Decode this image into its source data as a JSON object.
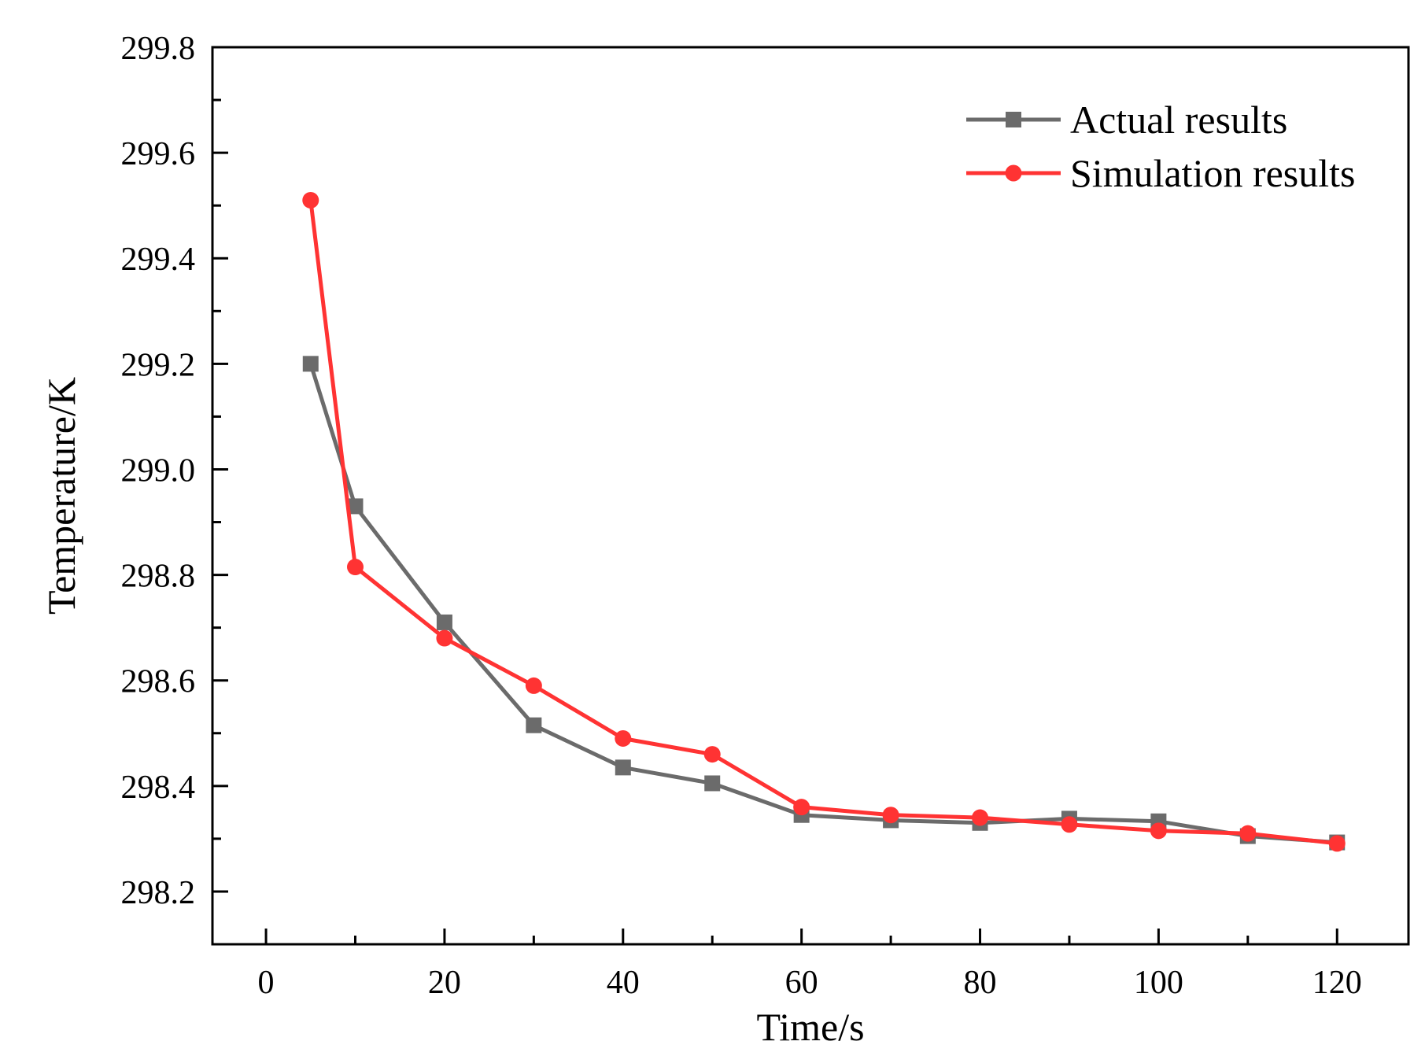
{
  "chart_data": {
    "type": "line",
    "title": "",
    "xlabel": "Time/s",
    "ylabel": "Temperature/K",
    "xlim": [
      -6,
      128
    ],
    "ylim": [
      298.1,
      299.8
    ],
    "xticks": [
      0,
      20,
      40,
      60,
      80,
      100,
      120
    ],
    "xtick_labels": [
      "0",
      "20",
      "40",
      "60",
      "80",
      "100",
      "120"
    ],
    "yticks": [
      298.2,
      298.4,
      298.6,
      298.8,
      299.0,
      299.2,
      299.4,
      299.6,
      299.8
    ],
    "ytick_labels": [
      "298.2",
      "298.4",
      "298.6",
      "298.8",
      "299.0",
      "299.2",
      "299.4",
      "299.6",
      "299.8"
    ],
    "grid": false,
    "legend_position": "top-right",
    "series": [
      {
        "name": "Actual results",
        "color": "#6b6b6b",
        "marker": "square",
        "x": [
          5,
          10,
          20,
          30,
          40,
          50,
          60,
          70,
          80,
          90,
          100,
          110,
          120
        ],
        "y": [
          299.2,
          298.93,
          298.71,
          298.515,
          298.435,
          298.405,
          298.345,
          298.335,
          298.33,
          298.338,
          298.333,
          298.305,
          298.293
        ]
      },
      {
        "name": "Simulation results",
        "color": "#ff3333",
        "marker": "circle",
        "x": [
          5,
          10,
          20,
          30,
          40,
          50,
          60,
          70,
          80,
          90,
          100,
          110,
          120
        ],
        "y": [
          299.51,
          298.815,
          298.68,
          298.59,
          298.49,
          298.46,
          298.36,
          298.345,
          298.34,
          298.327,
          298.315,
          298.31,
          298.291
        ]
      }
    ]
  }
}
